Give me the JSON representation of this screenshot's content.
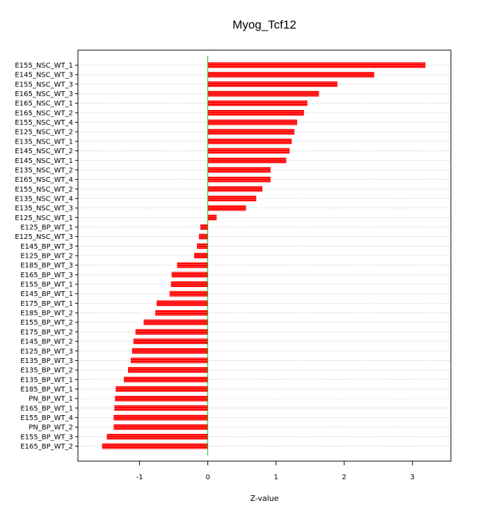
{
  "chart_data": {
    "type": "bar",
    "orientation": "horizontal",
    "title": "Myog_Tcf12",
    "xlabel": "Z-value",
    "ylabel": "",
    "xlim": [
      -1.72,
      3.38
    ],
    "xticks": [
      -1,
      0,
      1,
      2,
      3
    ],
    "grid": true,
    "zero_line": true,
    "colors": {
      "bar": "#ff0000",
      "bar_hatch": "#ffd9d9",
      "zero_line": "#00cc00",
      "grid": "#c8c8c8",
      "frame": "#000000"
    },
    "categories": [
      "E155_NSC_WT_1",
      "E145_NSC_WT_3",
      "E155_NSC_WT_3",
      "E165_NSC_WT_3",
      "E165_NSC_WT_1",
      "E165_NSC_WT_2",
      "E155_NSC_WT_4",
      "E125_NSC_WT_2",
      "E135_NSC_WT_1",
      "E145_NSC_WT_2",
      "E145_NSC_WT_1",
      "E135_NSC_WT_2",
      "E165_NSC_WT_4",
      "E155_NSC_WT_2",
      "E135_NSC_WT_4",
      "E135_NSC_WT_3",
      "E125_NSC_WT_1",
      "E125_BP_WT_1",
      "E125_NSC_WT_3",
      "E145_BP_WT_3",
      "E125_BP_WT_2",
      "E185_BP_WT_3",
      "E165_BP_WT_3",
      "E155_BP_WT_1",
      "E145_BP_WT_1",
      "E175_BP_WT_1",
      "E185_BP_WT_2",
      "E155_BP_WT_2",
      "E175_BP_WT_2",
      "E145_BP_WT_2",
      "E125_BP_WT_3",
      "E135_BP_WT_3",
      "E135_BP_WT_2",
      "E135_BP_WT_1",
      "E185_BP_WT_1",
      "PN_BP_WT_1",
      "E165_BP_WT_1",
      "E155_BP_WT_4",
      "PN_BP_WT_2",
      "E155_BP_WT_3",
      "E165_BP_WT_2"
    ],
    "values": [
      3.19,
      2.44,
      1.9,
      1.63,
      1.46,
      1.41,
      1.31,
      1.27,
      1.23,
      1.2,
      1.15,
      0.92,
      0.92,
      0.8,
      0.71,
      0.56,
      0.13,
      -0.11,
      -0.13,
      -0.16,
      -0.2,
      -0.45,
      -0.53,
      -0.54,
      -0.56,
      -0.75,
      -0.77,
      -0.94,
      -1.06,
      -1.09,
      -1.11,
      -1.13,
      -1.17,
      -1.23,
      -1.35,
      -1.36,
      -1.37,
      -1.38,
      -1.38,
      -1.48,
      -1.55
    ]
  }
}
